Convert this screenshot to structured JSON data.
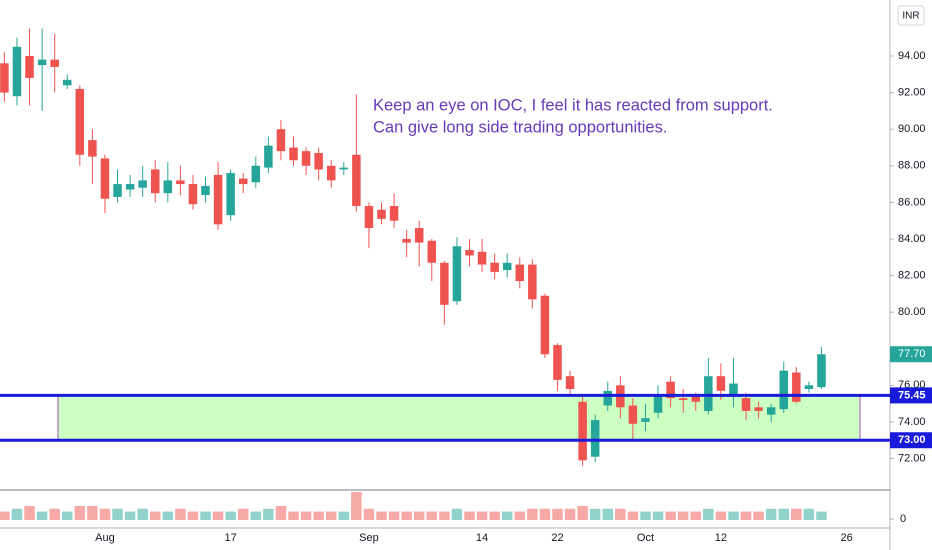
{
  "chart_data": {
    "type": "candlestick",
    "currency": "INR",
    "annotation": [
      "Keep an eye on IOC, I feel it has reacted from support.",
      "Can give long side trading opportunities."
    ],
    "categories": [
      null,
      null,
      null,
      null,
      null,
      null,
      null,
      null,
      "Aug",
      null,
      null,
      null,
      null,
      null,
      null,
      null,
      null,
      null,
      "17",
      null,
      null,
      null,
      null,
      null,
      null,
      null,
      null,
      null,
      null,
      "Sep",
      null,
      null,
      null,
      null,
      null,
      null,
      null,
      null,
      "14",
      null,
      null,
      null,
      null,
      null,
      "22",
      null,
      null,
      null,
      null,
      null,
      null,
      "Oct",
      null,
      null,
      null,
      null,
      null,
      "12",
      null,
      null,
      null,
      null,
      null,
      null,
      null,
      null,
      null,
      "26"
    ],
    "open": [
      93.6,
      91.8,
      94.0,
      93.5,
      93.8,
      92.4,
      92.2,
      89.4,
      88.4,
      86.3,
      86.7,
      86.8,
      87.8,
      86.5,
      87.2,
      87.0,
      86.4,
      87.5,
      85.3,
      87.3,
      87.1,
      87.9,
      90.0,
      89.0,
      88.8,
      88.7,
      88.0,
      87.8,
      88.6,
      85.8,
      85.6,
      85.8,
      84.0,
      84.6,
      83.9,
      82.7,
      80.6,
      83.4,
      83.3,
      82.7,
      82.3,
      82.6,
      82.6,
      80.9,
      78.2,
      76.5,
      75.1,
      72.1,
      74.9,
      76.0,
      74.9,
      74.0,
      74.5,
      76.2,
      75.3,
      75.5,
      74.6,
      76.5,
      75.4,
      75.3,
      74.8,
      74.4,
      74.7,
      76.7,
      75.8,
      75.9,
      null,
      null
    ],
    "high": [
      94.2,
      95.0,
      95.5,
      95.5,
      95.2,
      93.0,
      92.4,
      90.0,
      88.6,
      87.8,
      87.5,
      88.0,
      88.3,
      88.2,
      88.0,
      87.5,
      87.4,
      88.2,
      87.8,
      87.6,
      88.5,
      89.6,
      90.5,
      89.6,
      89.0,
      89.0,
      88.3,
      88.2,
      91.9,
      86.0,
      86.0,
      86.5,
      84.5,
      85.0,
      84.0,
      82.8,
      84.1,
      84.0,
      84.0,
      83.2,
      83.2,
      83.0,
      82.9,
      81.0,
      78.3,
      76.8,
      75.5,
      74.4,
      76.2,
      76.5,
      75.3,
      75.0,
      76.0,
      76.5,
      75.8,
      75.6,
      77.5,
      77.2,
      77.5,
      75.6,
      75.1,
      75.0,
      77.3,
      77.0,
      76.2,
      78.1,
      null,
      null
    ],
    "low": [
      91.5,
      91.3,
      91.3,
      91.0,
      92.0,
      92.2,
      88.0,
      87.0,
      85.4,
      86.0,
      86.3,
      86.3,
      86.0,
      86.0,
      86.4,
      85.6,
      86.0,
      84.5,
      85.0,
      86.5,
      86.8,
      87.6,
      88.3,
      88.0,
      87.5,
      87.2,
      86.8,
      87.5,
      85.5,
      83.5,
      84.8,
      84.6,
      83.0,
      82.5,
      81.7,
      79.3,
      80.4,
      82.5,
      82.2,
      81.8,
      81.9,
      81.3,
      80.2,
      77.5,
      75.7,
      75.5,
      71.6,
      71.8,
      74.6,
      74.2,
      73.0,
      73.5,
      74.2,
      74.8,
      74.5,
      74.6,
      74.4,
      75.2,
      74.8,
      74.1,
      74.2,
      74.0,
      74.5,
      75.0,
      75.6,
      75.8,
      null,
      null
    ],
    "close": [
      92.0,
      94.5,
      92.8,
      93.8,
      93.4,
      92.7,
      88.6,
      88.5,
      86.2,
      87.0,
      87.0,
      87.2,
      86.5,
      87.2,
      87.0,
      85.9,
      86.9,
      84.8,
      87.6,
      87.0,
      88.0,
      89.1,
      88.8,
      88.3,
      88.0,
      87.8,
      87.2,
      87.9,
      85.8,
      84.6,
      85.1,
      85.0,
      83.8,
      83.8,
      82.7,
      80.4,
      83.6,
      83.1,
      82.6,
      82.2,
      82.7,
      81.7,
      80.7,
      77.7,
      76.3,
      75.8,
      71.9,
      74.1,
      75.7,
      74.8,
      73.9,
      74.2,
      75.5,
      75.3,
      75.2,
      75.1,
      76.5,
      75.7,
      76.1,
      74.6,
      74.6,
      74.8,
      76.8,
      75.1,
      76.0,
      77.7,
      null,
      null
    ],
    "volume": [
      3,
      4,
      5,
      3,
      4,
      3,
      5,
      5,
      4,
      4,
      3,
      4,
      3,
      3,
      4,
      3,
      3,
      3,
      3,
      4,
      3,
      4,
      5,
      3,
      3,
      3,
      3,
      3,
      10,
      4,
      3,
      3,
      3,
      3,
      3,
      3,
      4,
      3,
      3,
      3,
      3,
      3,
      4,
      4,
      4,
      4,
      5,
      4,
      4,
      4,
      3,
      3,
      3,
      3,
      3,
      3,
      4,
      3,
      3,
      3,
      3,
      4,
      4,
      4,
      4,
      3,
      null,
      null
    ],
    "up_color": "#26a69a",
    "down_color": "#ef5350",
    "ylim": [
      70.28,
      97.06
    ],
    "yticks": [
      {
        "value": 72,
        "label": "72.00"
      },
      {
        "value": 74,
        "label": "74.00"
      },
      {
        "value": 76,
        "label": "76.00"
      },
      {
        "value": 80,
        "label": "80.00"
      },
      {
        "value": 82,
        "label": "82.00"
      },
      {
        "value": 84,
        "label": "84.00"
      },
      {
        "value": 86,
        "label": "86.00"
      },
      {
        "value": 88,
        "label": "88.00"
      },
      {
        "value": 90,
        "label": "90.00"
      },
      {
        "value": 92,
        "label": "92.00"
      },
      {
        "value": 94,
        "label": "94.00"
      }
    ],
    "volume_ylim": [
      0,
      10.7
    ],
    "volume_yticks": [
      0
    ],
    "levels": [
      {
        "value": 75.45,
        "label": "75.45"
      },
      {
        "value": 73.0,
        "label": "73.00"
      }
    ],
    "level_color": "#1a1adb",
    "zone_color": "#ccffc2",
    "last_price": {
      "value": 77.7,
      "label": "77.70"
    }
  }
}
